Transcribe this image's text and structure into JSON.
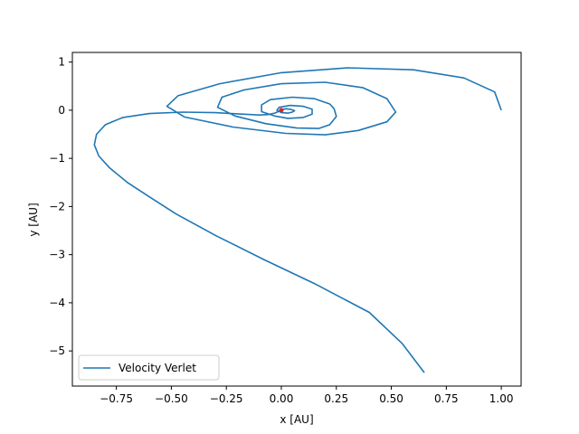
{
  "chart_data": {
    "type": "line",
    "title": "",
    "xlabel": "x [AU]",
    "ylabel": "y [AU]",
    "xlim": [
      -0.95,
      1.09
    ],
    "ylim": [
      -5.73,
      1.2
    ],
    "xticks": [
      -0.75,
      -0.5,
      -0.25,
      0.0,
      0.25,
      0.5,
      0.75,
      1.0
    ],
    "xtick_labels": [
      "−0.75",
      "−0.50",
      "−0.25",
      "0.00",
      "0.25",
      "0.50",
      "0.75",
      "1.00"
    ],
    "yticks": [
      1,
      0,
      -1,
      -2,
      -3,
      -4,
      -5
    ],
    "ytick_labels": [
      "1",
      "0",
      "−1",
      "−2",
      "−3",
      "−4",
      "−5"
    ],
    "grid": false,
    "legend": {
      "position": "lower-left",
      "entries": [
        "Velocity Verlet"
      ]
    },
    "series": [
      {
        "name": "Velocity Verlet",
        "color": "#1f77b4",
        "points": [
          [
            1.0,
            0.0
          ],
          [
            0.97,
            0.38
          ],
          [
            0.83,
            0.67
          ],
          [
            0.6,
            0.84
          ],
          [
            0.3,
            0.88
          ],
          [
            0.0,
            0.78
          ],
          [
            -0.28,
            0.55
          ],
          [
            -0.47,
            0.3
          ],
          [
            -0.52,
            0.08
          ],
          [
            -0.44,
            -0.14
          ],
          [
            -0.22,
            -0.35
          ],
          [
            0.02,
            -0.48
          ],
          [
            0.2,
            -0.51
          ],
          [
            0.35,
            -0.42
          ],
          [
            0.48,
            -0.24
          ],
          [
            0.52,
            -0.04
          ],
          [
            0.48,
            0.24
          ],
          [
            0.37,
            0.47
          ],
          [
            0.2,
            0.58
          ],
          [
            0.0,
            0.55
          ],
          [
            -0.17,
            0.42
          ],
          [
            -0.27,
            0.27
          ],
          [
            -0.29,
            0.06
          ],
          [
            -0.21,
            -0.12
          ],
          [
            -0.07,
            -0.28
          ],
          [
            0.07,
            -0.37
          ],
          [
            0.17,
            -0.38
          ],
          [
            0.22,
            -0.3
          ],
          [
            0.25,
            -0.13
          ],
          [
            0.24,
            0.03
          ],
          [
            0.22,
            0.13
          ],
          [
            0.15,
            0.24
          ],
          [
            0.05,
            0.27
          ],
          [
            -0.05,
            0.22
          ],
          [
            -0.09,
            0.11
          ],
          [
            -0.09,
            -0.03
          ],
          [
            -0.03,
            -0.12
          ],
          [
            0.03,
            -0.17
          ],
          [
            0.1,
            -0.15
          ],
          [
            0.14,
            -0.08
          ],
          [
            0.14,
            0.02
          ],
          [
            0.1,
            0.08
          ],
          [
            0.04,
            0.1
          ],
          [
            -0.01,
            0.06
          ],
          [
            -0.02,
            0.0
          ],
          [
            0.0,
            -0.05
          ],
          [
            0.03,
            -0.06
          ],
          [
            0.05,
            -0.04
          ],
          [
            0.06,
            -0.01
          ],
          [
            0.04,
            0.02
          ],
          [
            0.02,
            0.03
          ],
          [
            0.0,
            0.01
          ],
          [
            -0.01,
            -0.02
          ],
          [
            -0.03,
            -0.06
          ],
          [
            -0.06,
            -0.09
          ],
          [
            -0.1,
            -0.1
          ],
          [
            -0.18,
            -0.08
          ],
          [
            -0.3,
            -0.05
          ],
          [
            -0.45,
            -0.04
          ],
          [
            -0.6,
            -0.07
          ],
          [
            -0.72,
            -0.15
          ],
          [
            -0.8,
            -0.3
          ],
          [
            -0.84,
            -0.5
          ],
          [
            -0.85,
            -0.72
          ],
          [
            -0.83,
            -0.95
          ],
          [
            -0.78,
            -1.2
          ],
          [
            -0.7,
            -1.5
          ],
          [
            -0.6,
            -1.8
          ],
          [
            -0.48,
            -2.15
          ],
          [
            -0.3,
            -2.6
          ],
          [
            -0.08,
            -3.1
          ],
          [
            0.15,
            -3.6
          ],
          [
            0.4,
            -4.2
          ],
          [
            0.55,
            -4.85
          ],
          [
            0.65,
            -5.45
          ]
        ]
      }
    ],
    "markers": [
      {
        "x": 0.0,
        "y": 0.0,
        "color": "#d62728"
      }
    ]
  }
}
